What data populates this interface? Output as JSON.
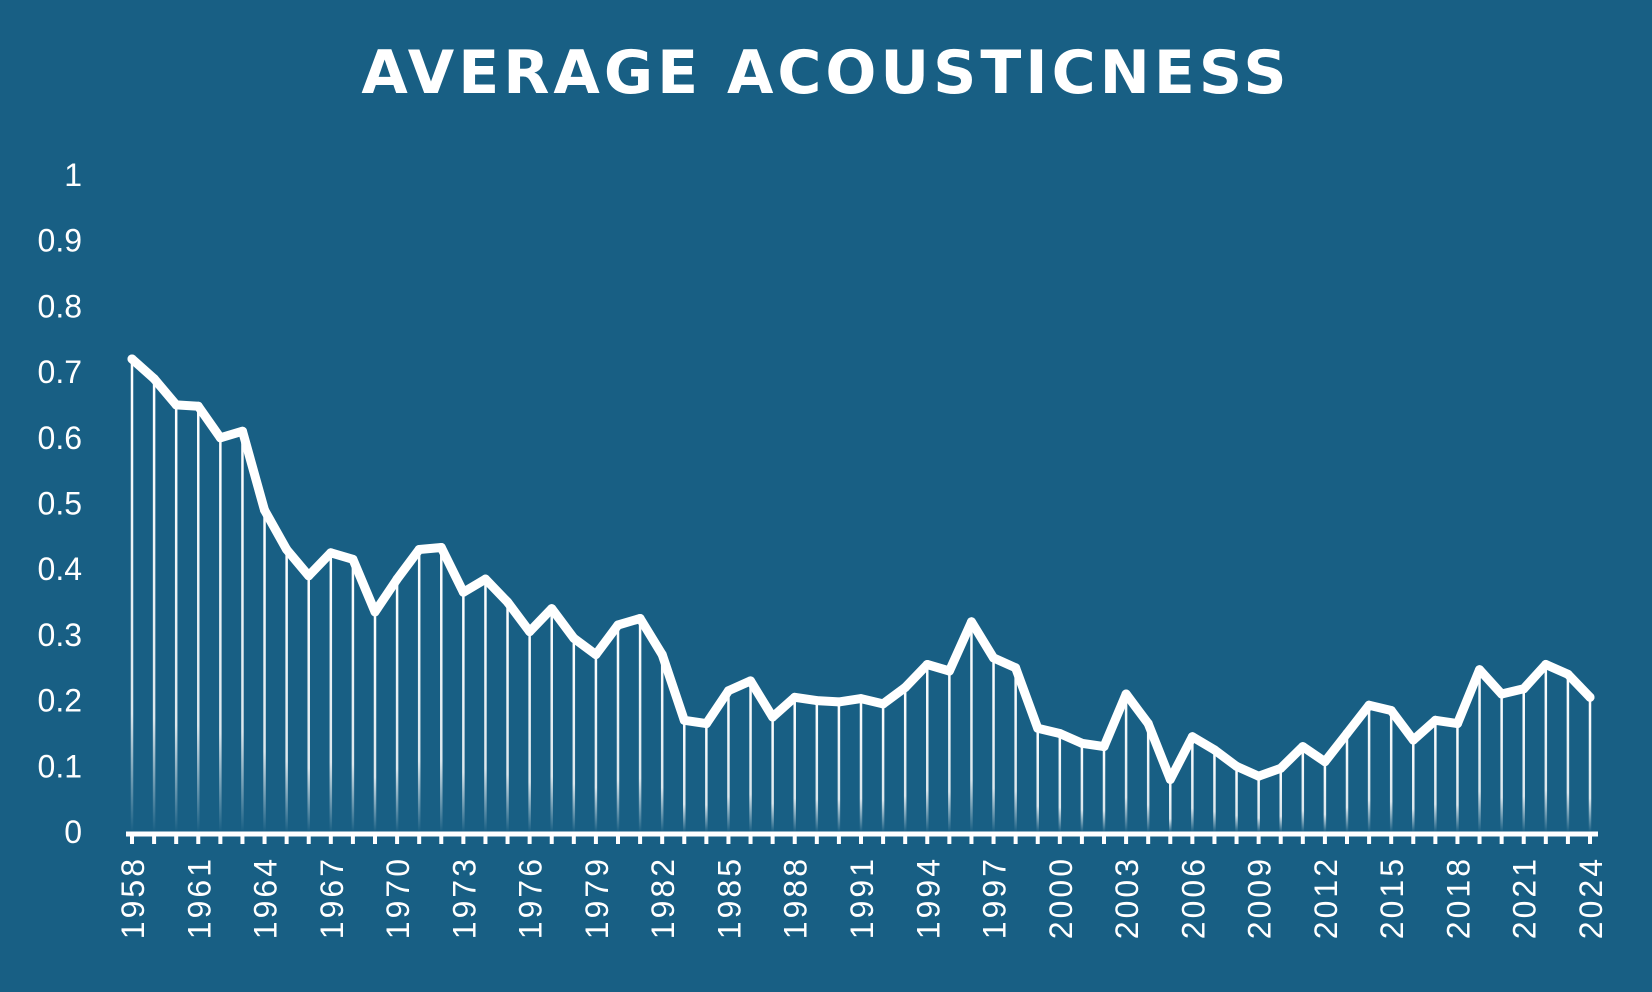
{
  "chart_data": {
    "type": "area",
    "title": "AVERAGE ACOUSTICNESS",
    "xlabel": "",
    "ylabel": "",
    "ylim": [
      0,
      1
    ],
    "yticks": [
      "0",
      "0.1",
      "0.2",
      "0.3",
      "0.4",
      "0.5",
      "0.6",
      "0.7",
      "0.8",
      "0.9",
      "1"
    ],
    "x": [
      1958,
      1959,
      1960,
      1961,
      1962,
      1963,
      1964,
      1965,
      1966,
      1967,
      1968,
      1969,
      1970,
      1971,
      1972,
      1973,
      1974,
      1975,
      1976,
      1977,
      1978,
      1979,
      1980,
      1981,
      1982,
      1983,
      1984,
      1985,
      1986,
      1987,
      1988,
      1989,
      1990,
      1991,
      1992,
      1993,
      1994,
      1995,
      1996,
      1997,
      1998,
      1999,
      2000,
      2001,
      2002,
      2003,
      2004,
      2005,
      2006,
      2007,
      2008,
      2009,
      2010,
      2011,
      2012,
      2013,
      2014,
      2015,
      2016,
      2017,
      2018,
      2019,
      2020,
      2021,
      2022,
      2023,
      2024
    ],
    "xtick_labels": [
      "1958",
      "1961",
      "1964",
      "1967",
      "1970",
      "1973",
      "1976",
      "1979",
      "1982",
      "1985",
      "1988",
      "1991",
      "1994",
      "1997",
      "2000",
      "2003",
      "2006",
      "2009",
      "2012",
      "2015",
      "2018",
      "2021",
      "2024"
    ],
    "series": [
      {
        "values": [
          0.72,
          0.69,
          0.65,
          0.648,
          0.6,
          0.61,
          0.49,
          0.43,
          0.39,
          0.425,
          0.415,
          0.335,
          0.385,
          0.43,
          0.433,
          0.365,
          0.385,
          0.35,
          0.305,
          0.34,
          0.295,
          0.27,
          0.315,
          0.325,
          0.27,
          0.17,
          0.165,
          0.215,
          0.23,
          0.175,
          0.205,
          0.2,
          0.198,
          0.203,
          0.195,
          0.22,
          0.255,
          0.245,
          0.32,
          0.265,
          0.25,
          0.158,
          0.15,
          0.135,
          0.13,
          0.21,
          0.165,
          0.08,
          0.145,
          0.125,
          0.1,
          0.085,
          0.097,
          0.13,
          0.107,
          0.15,
          0.193,
          0.185,
          0.14,
          0.17,
          0.165,
          0.247,
          0.21,
          0.218,
          0.255,
          0.24,
          0.205
        ]
      }
    ],
    "grid": false,
    "legend": "none",
    "colors": {
      "background": "#185f84",
      "line": "#ffffff"
    }
  }
}
